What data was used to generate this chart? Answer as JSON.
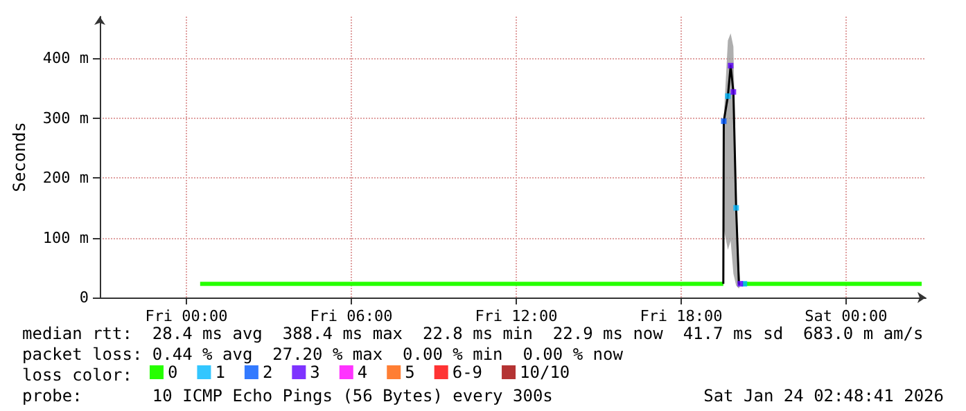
{
  "chart_data": {
    "type": "line",
    "ylabel": "Seconds",
    "legend_title": "loss color:",
    "legend": "bottom",
    "grid": true,
    "marker": "none",
    "line_style": "solid",
    "xlim": [
      "2026-01-22T20:51",
      "2026-01-24T02:54"
    ],
    "xticks": [
      {
        "value": "2026-01-23T00:00",
        "label": "Fri 00:00"
      },
      {
        "value": "2026-01-23T06:00",
        "label": "Fri 06:00"
      },
      {
        "value": "2026-01-23T12:00",
        "label": "Fri 12:00"
      },
      {
        "value": "2026-01-23T18:00",
        "label": "Fri 18:00"
      },
      {
        "value": "2026-01-24T00:00",
        "label": "Sat 00:00"
      }
    ],
    "ylim": [
      0,
      470
    ],
    "yticks": [
      {
        "value": 0,
        "label": "0"
      },
      {
        "value": 100,
        "label": "100 m"
      },
      {
        "value": 200,
        "label": "200 m"
      },
      {
        "value": 300,
        "label": "300 m"
      },
      {
        "value": 400,
        "label": "400 m"
      }
    ],
    "series": [
      {
        "name": "0",
        "color": "#26ff00",
        "x": [
          "2026-01-23T00:30",
          "2026-01-23T04:00",
          "2026-01-23T08:00",
          "2026-01-23T12:00",
          "2026-01-23T16:00",
          "2026-01-23T19:32",
          "2026-01-23T19:33",
          "2026-01-23T20:12",
          "2026-01-23T20:15",
          "2026-01-23T22:00",
          "2026-01-24T00:00",
          "2026-01-24T02:45"
        ],
        "values": [
          23,
          23,
          23,
          23,
          23,
          23,
          null,
          null,
          23,
          23,
          23,
          23
        ]
      },
      {
        "color": "#000000",
        "x": [
          "2026-01-23T19:32",
          "2026-01-23T19:33",
          "2026-01-23T19:42",
          "2026-01-23T19:48",
          "2026-01-23T19:54",
          "2026-01-23T20:00",
          "2026-01-23T20:06",
          "2026-01-23T20:09"
        ],
        "values": [
          23,
          295,
          337,
          388,
          344,
          150,
          23,
          23
        ],
        "lower": [
          23,
          115,
          80,
          95,
          40,
          20,
          15,
          20
        ],
        "upper": [
          23,
          300,
          430,
          442,
          420,
          180,
          55,
          25
        ]
      },
      {
        "name": "1",
        "type": "scatter",
        "marker": "square",
        "color": "#00b8ff",
        "x": [
          "2026-01-23T19:42",
          "2026-01-23T20:00",
          "2026-01-23T20:18"
        ],
        "values": [
          337,
          150,
          23
        ]
      },
      {
        "name": "2",
        "type": "scatter",
        "marker": "square",
        "color": "#0059ff",
        "x": [
          "2026-01-23T19:33"
        ],
        "values": [
          295
        ]
      },
      {
        "name": "3",
        "type": "scatter",
        "marker": "square",
        "color": "#5e00ff",
        "x": [
          "2026-01-23T19:48",
          "2026-01-23T19:54",
          "2026-01-23T20:09"
        ],
        "values": [
          388,
          344,
          23
        ]
      },
      {
        "name": "4",
        "type": "scatter",
        "color": "#ff00ff"
      },
      {
        "name": "5",
        "type": "scatter",
        "color": "#ff5e00"
      },
      {
        "name": "6-9",
        "type": "scatter",
        "color": "#ff0000"
      },
      {
        "name": "10/10",
        "type": "scatter",
        "color": "#a10000"
      }
    ],
    "annotations": [
      "median rtt:  28.4 ms avg  388.4 ms max  22.8 ms min  22.9 ms now  41.7 ms sd  683.0 m am/s",
      "packet loss: 0.44 % avg  27.20 % max  0.00 % min  0.00 % now",
      "probe:       10 ICMP Echo Pings (56 Bytes) every 300s",
      "Sat Jan 24 02:48:41 2026"
    ]
  }
}
